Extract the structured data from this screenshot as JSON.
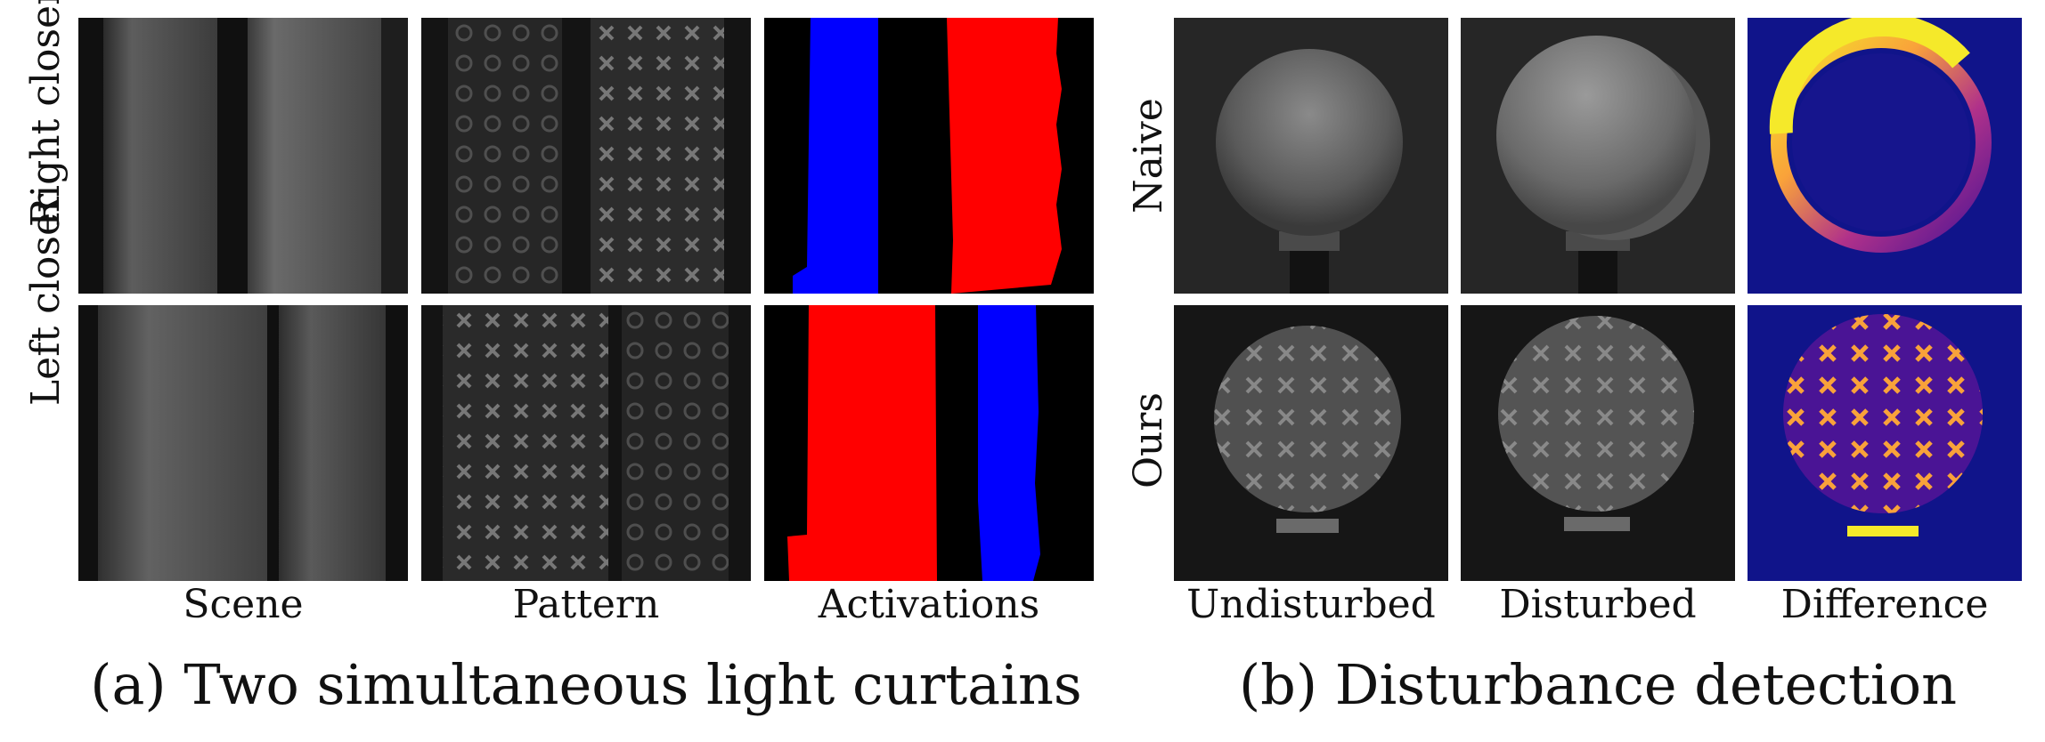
{
  "figure_a": {
    "caption": "(a) Two simultaneous light curtains",
    "row_labels": [
      "Right closer",
      "Left closer"
    ],
    "column_labels": [
      "Scene",
      "Pattern",
      "Activations"
    ]
  },
  "figure_b": {
    "caption": "(b) Disturbance detection",
    "row_labels": [
      "Naive",
      "Ours"
    ],
    "column_labels": [
      "Undisturbed",
      "Disturbed",
      "Difference"
    ]
  },
  "colors": {
    "activation_left": "#0000ff",
    "activation_right": "#ff0000",
    "difference_background": "#10148a",
    "difference_hot": "#f5e92a"
  }
}
